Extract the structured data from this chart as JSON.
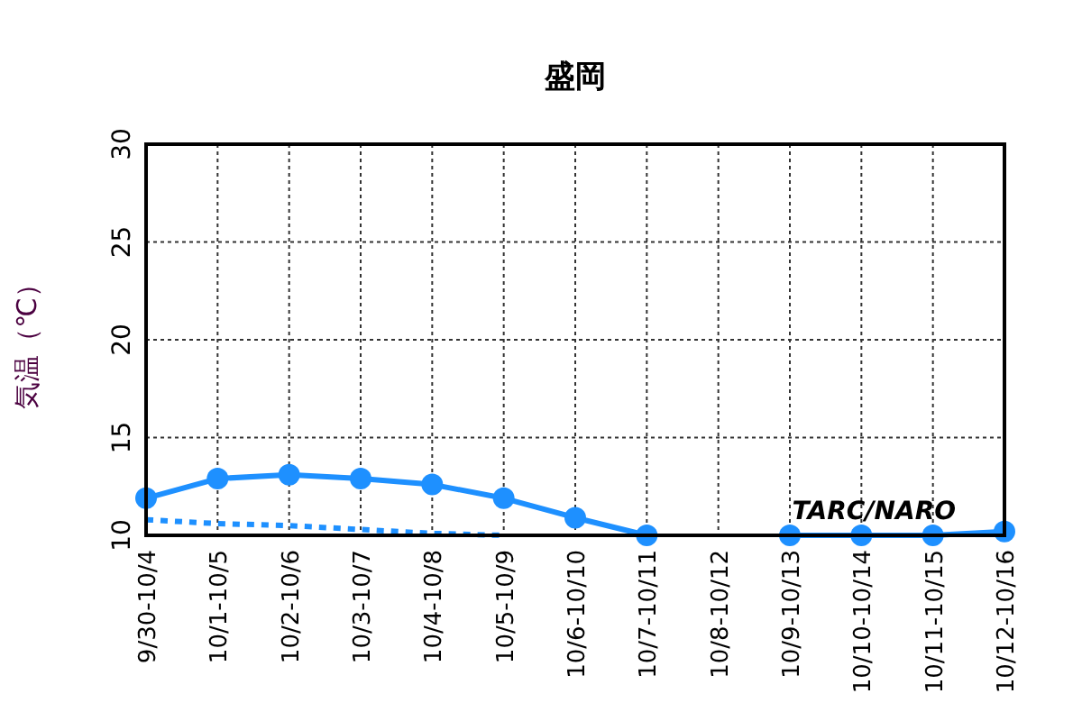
{
  "chart_data": {
    "type": "line",
    "title": "盛岡",
    "ylabel": "気温（℃）",
    "categories": [
      "9/30-10/4",
      "10/1-10/5",
      "10/2-10/6",
      "10/3-10/7",
      "10/4-10/8",
      "10/5-10/9",
      "10/6-10/10",
      "10/7-10/11",
      "10/8-10/12",
      "10/9-10/13",
      "10/10-10/14",
      "10/11-10/15",
      "10/12-10/16"
    ],
    "series": [
      {
        "color": "#1e90ff",
        "marker": "circle",
        "line_style": "solid",
        "values": [
          11.9,
          12.9,
          13.1,
          12.9,
          12.6,
          11.9,
          10.9,
          10.0,
          null,
          10.0,
          10.0,
          10.0,
          10.2
        ]
      },
      {
        "color": "#1e90ff",
        "marker": "none",
        "line_style": "dotted",
        "values": [
          10.8,
          10.6,
          10.5,
          10.3,
          10.1,
          10.0,
          null,
          null,
          null,
          null,
          null,
          null,
          null
        ]
      }
    ],
    "ylim": [
      10,
      30
    ],
    "yticks": [
      10,
      15,
      20,
      25,
      30
    ],
    "grid": true,
    "annotations": [
      "TARC/NARO"
    ]
  }
}
